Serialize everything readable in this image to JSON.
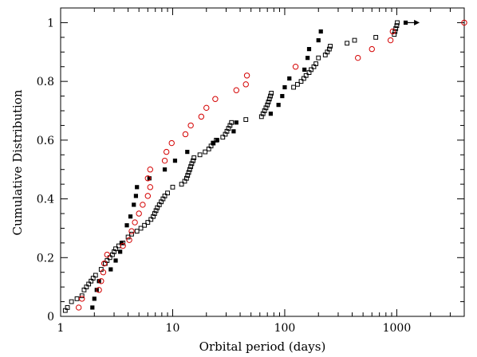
{
  "chart_data": {
    "type": "scatter",
    "title": "",
    "xlabel": "Orbital period (days)",
    "ylabel": "Cumulative Distribution",
    "xscale": "log",
    "xlim": [
      1,
      4000
    ],
    "ylim": [
      0,
      1.05
    ],
    "xticks": [
      {
        "value": 1,
        "label": "1"
      },
      {
        "value": 10,
        "label": "10"
      },
      {
        "value": 100,
        "label": "100"
      },
      {
        "value": 1000,
        "label": "1000"
      }
    ],
    "yticks": [
      {
        "value": 0,
        "label": "0"
      },
      {
        "value": 0.2,
        "label": "0.2"
      },
      {
        "value": 0.4,
        "label": "0.4"
      },
      {
        "value": 0.6,
        "label": "0.6"
      },
      {
        "value": 0.8,
        "label": "0.8"
      },
      {
        "value": 1,
        "label": "1"
      }
    ],
    "grid": false,
    "legend": "none",
    "series": [
      {
        "marker": "open-square",
        "color": "#000000",
        "points": [
          [
            1.1,
            0.02
          ],
          [
            1.15,
            0.03
          ],
          [
            1.25,
            0.05
          ],
          [
            1.4,
            0.06
          ],
          [
            1.55,
            0.07
          ],
          [
            1.62,
            0.09
          ],
          [
            1.7,
            0.1
          ],
          [
            1.78,
            0.11
          ],
          [
            1.87,
            0.12
          ],
          [
            1.95,
            0.13
          ],
          [
            2.05,
            0.14
          ],
          [
            2.3,
            0.16
          ],
          [
            2.5,
            0.18
          ],
          [
            2.6,
            0.19
          ],
          [
            2.75,
            0.2
          ],
          [
            2.9,
            0.21
          ],
          [
            3.0,
            0.22
          ],
          [
            3.1,
            0.23
          ],
          [
            3.3,
            0.24
          ],
          [
            3.6,
            0.25
          ],
          [
            4.0,
            0.27
          ],
          [
            4.3,
            0.28
          ],
          [
            4.8,
            0.29
          ],
          [
            5.2,
            0.3
          ],
          [
            5.6,
            0.31
          ],
          [
            6.0,
            0.32
          ],
          [
            6.4,
            0.33
          ],
          [
            6.7,
            0.34
          ],
          [
            6.9,
            0.35
          ],
          [
            7.1,
            0.36
          ],
          [
            7.3,
            0.37
          ],
          [
            7.6,
            0.38
          ],
          [
            7.9,
            0.39
          ],
          [
            8.2,
            0.4
          ],
          [
            8.5,
            0.41
          ],
          [
            9.0,
            0.42
          ],
          [
            10.0,
            0.44
          ],
          [
            12.0,
            0.45
          ],
          [
            12.8,
            0.46
          ],
          [
            13.3,
            0.47
          ],
          [
            13.6,
            0.48
          ],
          [
            13.9,
            0.49
          ],
          [
            14.2,
            0.5
          ],
          [
            14.5,
            0.51
          ],
          [
            14.8,
            0.52
          ],
          [
            15.2,
            0.53
          ],
          [
            15.5,
            0.54
          ],
          [
            17.5,
            0.55
          ],
          [
            19.5,
            0.56
          ],
          [
            21.0,
            0.57
          ],
          [
            22.0,
            0.58
          ],
          [
            23.0,
            0.59
          ],
          [
            24.5,
            0.6
          ],
          [
            28.0,
            0.61
          ],
          [
            29.5,
            0.62
          ],
          [
            30.5,
            0.63
          ],
          [
            31.5,
            0.64
          ],
          [
            32.5,
            0.65
          ],
          [
            33.5,
            0.66
          ],
          [
            45.0,
            0.67
          ],
          [
            62.0,
            0.68
          ],
          [
            64.0,
            0.69
          ],
          [
            66.0,
            0.7
          ],
          [
            68.0,
            0.71
          ],
          [
            70.0,
            0.72
          ],
          [
            71.5,
            0.73
          ],
          [
            73.0,
            0.74
          ],
          [
            74.5,
            0.75
          ],
          [
            76.0,
            0.76
          ],
          [
            120.0,
            0.78
          ],
          [
            130.0,
            0.79
          ],
          [
            140.0,
            0.8
          ],
          [
            148.0,
            0.81
          ],
          [
            155.0,
            0.82
          ],
          [
            165.0,
            0.83
          ],
          [
            172.0,
            0.84
          ],
          [
            182.0,
            0.85
          ],
          [
            190.0,
            0.86
          ],
          [
            200.0,
            0.88
          ],
          [
            230.0,
            0.89
          ],
          [
            240.0,
            0.9
          ],
          [
            250.0,
            0.91
          ],
          [
            255.0,
            0.92
          ],
          [
            360.0,
            0.93
          ],
          [
            420.0,
            0.94
          ],
          [
            650.0,
            0.95
          ],
          [
            950.0,
            0.96
          ],
          [
            965.0,
            0.97
          ],
          [
            980.0,
            0.98
          ],
          [
            1000.0,
            0.99
          ],
          [
            1010.0,
            1.0
          ]
        ]
      },
      {
        "marker": "filled-square",
        "color": "#000000",
        "points": [
          [
            1.92,
            0.03
          ],
          [
            2.0,
            0.06
          ],
          [
            2.1,
            0.09
          ],
          [
            2.2,
            0.12
          ],
          [
            2.8,
            0.16
          ],
          [
            3.1,
            0.19
          ],
          [
            3.4,
            0.22
          ],
          [
            3.5,
            0.25
          ],
          [
            3.9,
            0.31
          ],
          [
            4.2,
            0.34
          ],
          [
            4.5,
            0.38
          ],
          [
            4.7,
            0.41
          ],
          [
            4.8,
            0.44
          ],
          [
            6.2,
            0.47
          ],
          [
            8.5,
            0.5
          ],
          [
            10.5,
            0.53
          ],
          [
            13.5,
            0.56
          ],
          [
            23.0,
            0.59
          ],
          [
            25.0,
            0.6
          ],
          [
            35.0,
            0.63
          ],
          [
            37.0,
            0.66
          ],
          [
            75.0,
            0.69
          ],
          [
            88.0,
            0.72
          ],
          [
            95.0,
            0.75
          ],
          [
            100.0,
            0.78
          ],
          [
            110.0,
            0.81
          ],
          [
            150.0,
            0.84
          ],
          [
            160.0,
            0.88
          ],
          [
            165.0,
            0.91
          ],
          [
            200.0,
            0.94
          ],
          [
            210.0,
            0.97
          ],
          [
            1200.0,
            1.0
          ]
        ]
      },
      {
        "marker": "open-circle",
        "color": "#d40000",
        "points": [
          [
            1.45,
            0.03
          ],
          [
            1.55,
            0.06
          ],
          [
            2.2,
            0.09
          ],
          [
            2.3,
            0.12
          ],
          [
            2.4,
            0.15
          ],
          [
            2.45,
            0.18
          ],
          [
            2.6,
            0.21
          ],
          [
            3.6,
            0.24
          ],
          [
            4.1,
            0.26
          ],
          [
            4.3,
            0.29
          ],
          [
            4.6,
            0.32
          ],
          [
            5.0,
            0.35
          ],
          [
            5.4,
            0.38
          ],
          [
            6.0,
            0.41
          ],
          [
            6.3,
            0.44
          ],
          [
            6.0,
            0.47
          ],
          [
            6.3,
            0.5
          ],
          [
            8.5,
            0.53
          ],
          [
            8.8,
            0.56
          ],
          [
            9.8,
            0.59
          ],
          [
            13.0,
            0.62
          ],
          [
            14.5,
            0.65
          ],
          [
            18.0,
            0.68
          ],
          [
            20.0,
            0.71
          ],
          [
            24.0,
            0.74
          ],
          [
            37.0,
            0.77
          ],
          [
            45.0,
            0.79
          ],
          [
            46.0,
            0.82
          ],
          [
            125.0,
            0.85
          ],
          [
            450.0,
            0.88
          ],
          [
            600.0,
            0.91
          ],
          [
            880.0,
            0.94
          ],
          [
            920.0,
            0.97
          ],
          [
            4000.0,
            1.0
          ]
        ]
      }
    ],
    "annotation": {
      "type": "arrow",
      "direction": "right",
      "from": [
        1200,
        1.0
      ],
      "to": [
        1600,
        1.0
      ]
    }
  }
}
